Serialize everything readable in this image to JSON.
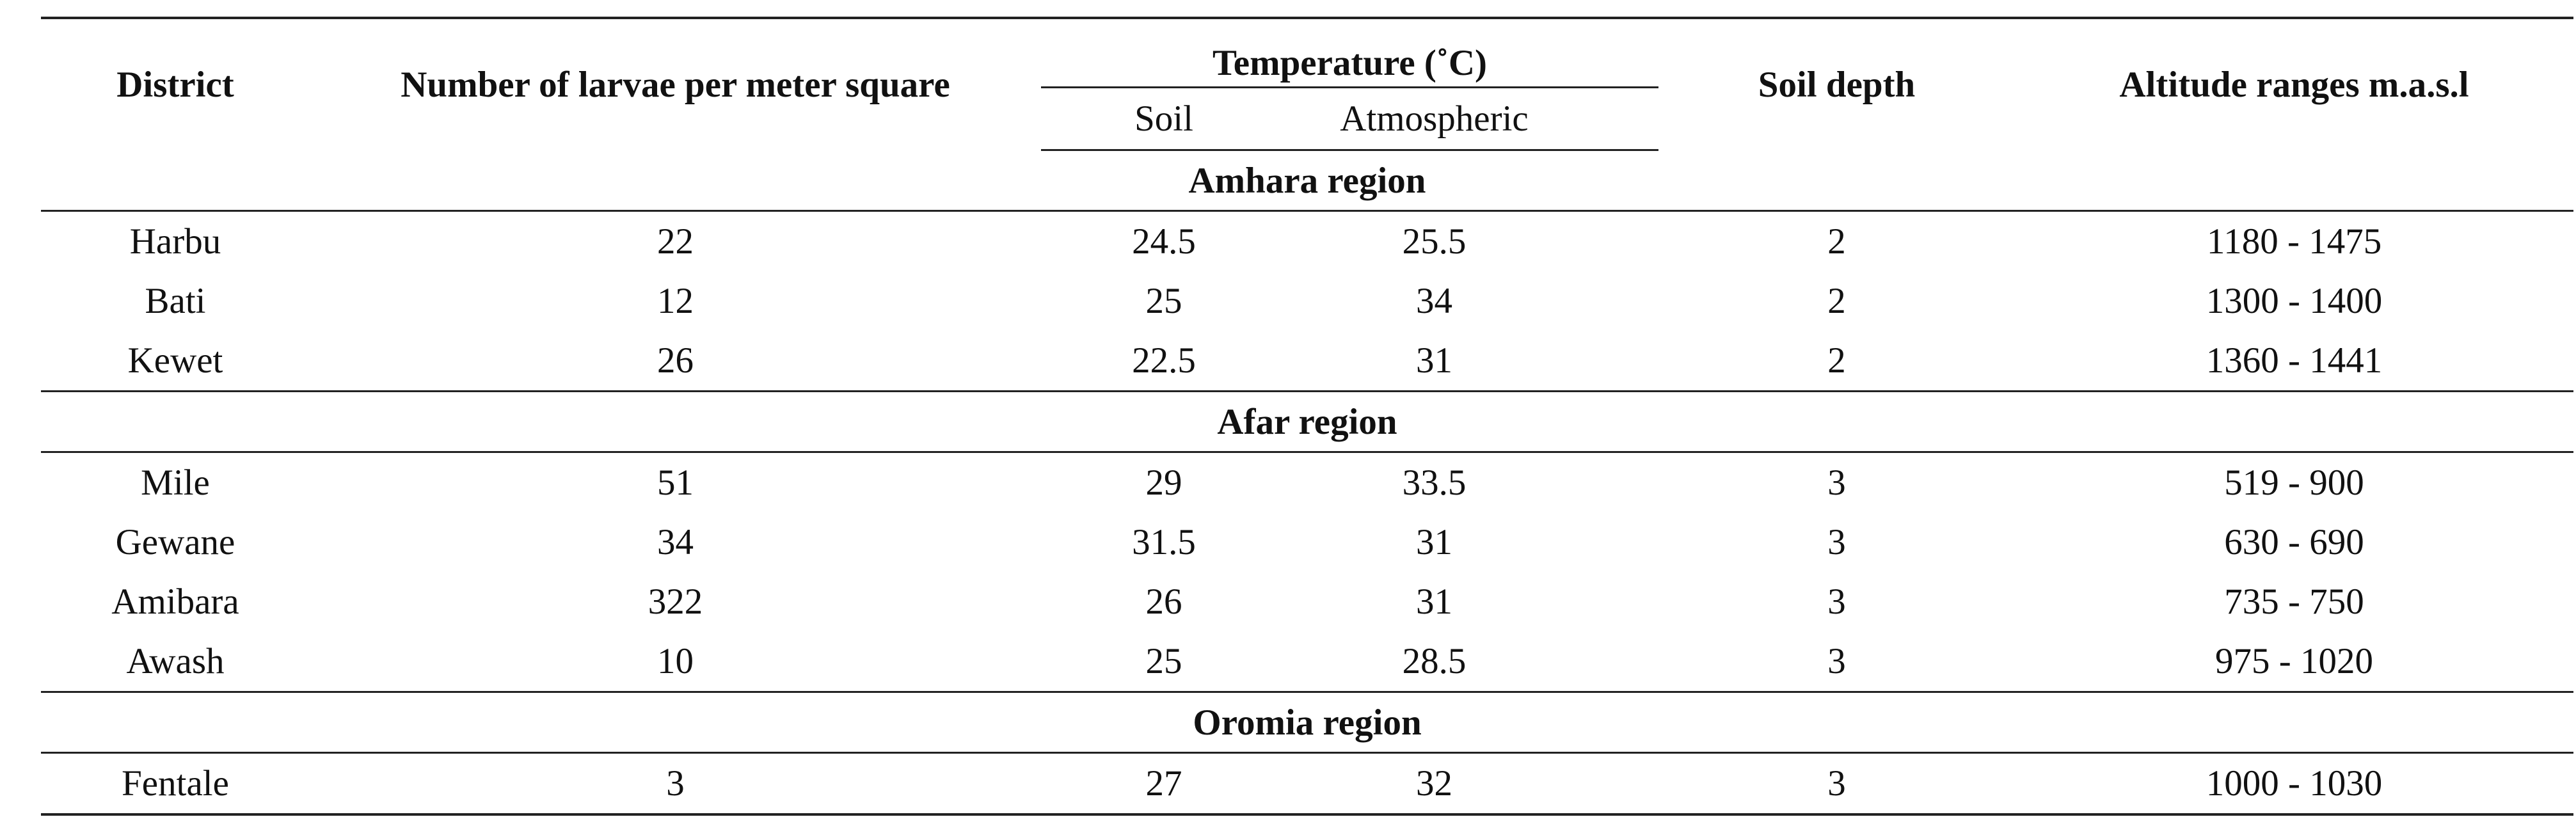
{
  "table": {
    "headers": {
      "district": "District",
      "larvae": "Number of larvae per meter square",
      "temperature": "Temperature (˚C)",
      "soil": "Soil",
      "atmospheric": "Atmospheric",
      "soil_depth": "Soil depth",
      "altitude": "Altitude ranges m.a.s.l"
    },
    "groups": [
      {
        "region": "Amhara region",
        "rows": [
          {
            "district": "Harbu",
            "larvae": "22",
            "soil": "24.5",
            "atmospheric": "25.5",
            "depth": "2",
            "altitude": "1180 - 1475"
          },
          {
            "district": "Bati",
            "larvae": "12",
            "soil": "25",
            "atmospheric": "34",
            "depth": "2",
            "altitude": "1300 - 1400"
          },
          {
            "district": "Kewet",
            "larvae": "26",
            "soil": "22.5",
            "atmospheric": "31",
            "depth": "2",
            "altitude": "1360 - 1441"
          }
        ]
      },
      {
        "region": "Afar region",
        "rows": [
          {
            "district": "Mile",
            "larvae": "51",
            "soil": "29",
            "atmospheric": "33.5",
            "depth": "3",
            "altitude": "519 - 900"
          },
          {
            "district": "Gewane",
            "larvae": "34",
            "soil": "31.5",
            "atmospheric": "31",
            "depth": "3",
            "altitude": "630 - 690"
          },
          {
            "district": "Amibara",
            "larvae": "322",
            "soil": "26",
            "atmospheric": "31",
            "depth": "3",
            "altitude": "735 - 750"
          },
          {
            "district": "Awash",
            "larvae": "10",
            "soil": "25",
            "atmospheric": "28.5",
            "depth": "3",
            "altitude": "975 - 1020"
          }
        ]
      },
      {
        "region": "Oromia region",
        "rows": [
          {
            "district": "Fentale",
            "larvae": "3",
            "soil": "27",
            "atmospheric": "32",
            "depth": "3",
            "altitude": "1000 - 1030"
          }
        ]
      }
    ]
  }
}
